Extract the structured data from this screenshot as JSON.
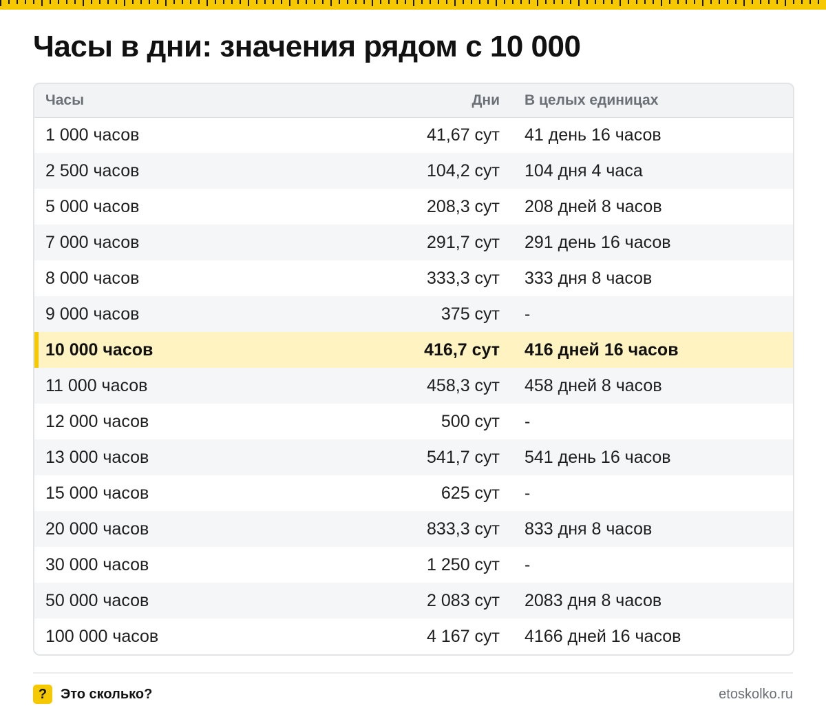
{
  "title": "Часы в дни: значения рядом с 10 000",
  "table": {
    "headers": [
      "Часы",
      "Дни",
      "В целых единицах"
    ],
    "rows": [
      {
        "hours": "1 000 часов",
        "days": "41,67 сут",
        "units": "41 день 16 часов"
      },
      {
        "hours": "2 500 часов",
        "days": "104,2 сут",
        "units": "104 дня 4 часа"
      },
      {
        "hours": "5 000 часов",
        "days": "208,3 сут",
        "units": "208 дней 8 часов"
      },
      {
        "hours": "7 000 часов",
        "days": "291,7 сут",
        "units": "291 день 16 часов"
      },
      {
        "hours": "8 000 часов",
        "days": "333,3 сут",
        "units": "333 дня 8 часов"
      },
      {
        "hours": "9 000 часов",
        "days": "375 сут",
        "units": "-"
      },
      {
        "hours": "10 000 часов",
        "days": "416,7 сут",
        "units": "416 дней 16 часов"
      },
      {
        "hours": "11 000 часов",
        "days": "458,3 сут",
        "units": "458 дней 8 часов"
      },
      {
        "hours": "12 000 часов",
        "days": "500 сут",
        "units": "-"
      },
      {
        "hours": "13 000 часов",
        "days": "541,7 сут",
        "units": "541 день 16 часов"
      },
      {
        "hours": "15 000 часов",
        "days": "625 сут",
        "units": "-"
      },
      {
        "hours": "20 000 часов",
        "days": "833,3 сут",
        "units": "833 дня 8 часов"
      },
      {
        "hours": "30 000 часов",
        "days": "1 250 сут",
        "units": "-"
      },
      {
        "hours": "50 000 часов",
        "days": "2 083 сут",
        "units": "2083 дня 8 часов"
      },
      {
        "hours": "100 000 часов",
        "days": "4 167 сут",
        "units": "4166 дней 16 часов"
      }
    ],
    "highlight_row": 6
  },
  "footer": {
    "icon_glyph": "?",
    "brand": "Это сколько?",
    "site": "etoskolko.ru"
  },
  "colors": {
    "accent": "#f5c800",
    "highlight_row": "#fff3c2"
  }
}
